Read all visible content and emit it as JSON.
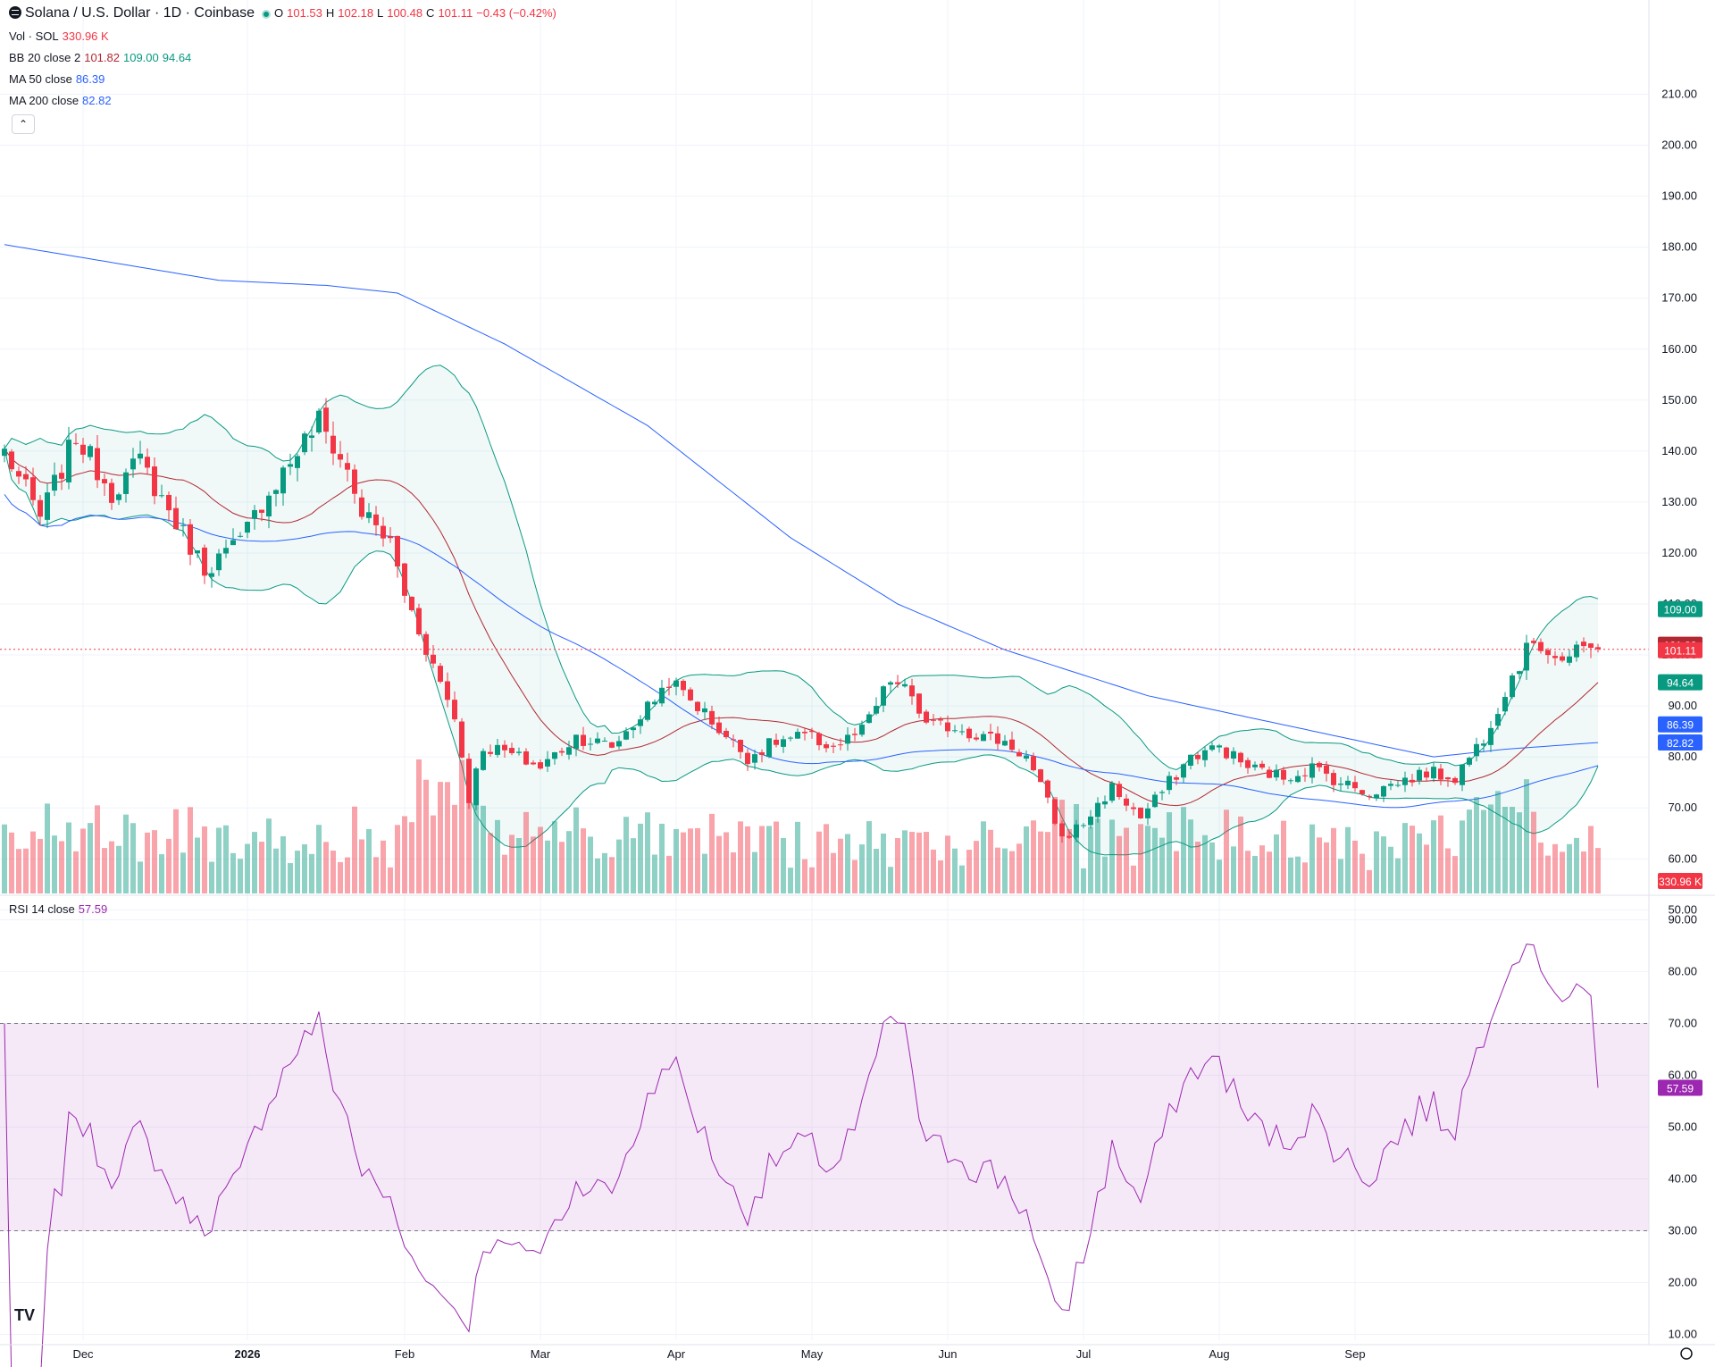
{
  "header": {
    "symbol_title": "Solana / U.S. Dollar · 1D · Coinbase",
    "open_label": "O",
    "open": "101.53",
    "high_label": "H",
    "high": "102.18",
    "low_label": "L",
    "low": "100.48",
    "close_label": "C",
    "close": "101.11",
    "change": "−0.43 (−0.42%)"
  },
  "indicators": {
    "vol_label": "Vol · SOL",
    "vol_value": "330.96 K",
    "bb_label": "BB 20 close 2",
    "bb_mid": "101.82",
    "bb_upper": "109.00",
    "bb_lower": "94.64",
    "ma50_label": "MA 50 close",
    "ma50_value": "86.39",
    "ma200_label": "MA 200 close",
    "ma200_value": "82.82",
    "rsi_label": "RSI 14 close",
    "rsi_value": "57.59"
  },
  "collapse_icon": "chevron-up",
  "logo": "TV",
  "colors": {
    "up": "#089981",
    "down": "#f23645",
    "bb": "#089981",
    "bb_basis": "#b22833",
    "ma": "#2962ff",
    "rsi": "#9c27b0"
  },
  "chart_data": [
    {
      "type": "candlestick",
      "title": "Solana / U.S. Dollar · 1D · Coinbase",
      "x_ticks": [
        "Dec",
        "2026",
        "Feb",
        "Mar",
        "Apr",
        "May",
        "Jun",
        "Jul",
        "Aug",
        "Sep"
      ],
      "y_ticks": [
        "210.00",
        "200.00",
        "190.00",
        "180.00",
        "170.00",
        "160.00",
        "150.00",
        "140.00",
        "130.00",
        "120.00",
        "110.00",
        "100.00",
        "90.00",
        "80.00",
        "70.00",
        "60.00",
        "50.00"
      ],
      "ylim": [
        48,
        214
      ],
      "price_path": [
        [
          0,
          140
        ],
        [
          5,
          127
        ],
        [
          10,
          143
        ],
        [
          15,
          132
        ],
        [
          19,
          138
        ],
        [
          24,
          126
        ],
        [
          28,
          117
        ],
        [
          33,
          122
        ],
        [
          36,
          130
        ],
        [
          40,
          138
        ],
        [
          44,
          146
        ],
        [
          48,
          136
        ],
        [
          50,
          128
        ],
        [
          54,
          122
        ],
        [
          56,
          112
        ],
        [
          60,
          98
        ],
        [
          63,
          88
        ],
        [
          65,
          72
        ],
        [
          67,
          82
        ],
        [
          70,
          81
        ],
        [
          75,
          78
        ],
        [
          80,
          84
        ],
        [
          85,
          82
        ],
        [
          89,
          88
        ],
        [
          93,
          95
        ],
        [
          97,
          90
        ],
        [
          101,
          84
        ],
        [
          104,
          80
        ],
        [
          108,
          83
        ],
        [
          112,
          84
        ],
        [
          116,
          82
        ],
        [
          120,
          85
        ],
        [
          124,
          95
        ],
        [
          127,
          92
        ],
        [
          129,
          86
        ],
        [
          133,
          86
        ],
        [
          137,
          84
        ],
        [
          140,
          83
        ],
        [
          143,
          80
        ],
        [
          146,
          71
        ],
        [
          148,
          64
        ],
        [
          151,
          67
        ],
        [
          155,
          74
        ],
        [
          159,
          68
        ],
        [
          163,
          75
        ],
        [
          166,
          80
        ],
        [
          170,
          82
        ],
        [
          174,
          78
        ],
        [
          179,
          76
        ],
        [
          183,
          78
        ],
        [
          187,
          75
        ],
        [
          191,
          73
        ],
        [
          195,
          75
        ],
        [
          199,
          77
        ],
        [
          203,
          76
        ],
        [
          207,
          84
        ],
        [
          211,
          96
        ],
        [
          214,
          103
        ],
        [
          218,
          99
        ],
        [
          221,
          101
        ],
        [
          223,
          101.11
        ]
      ],
      "last_price": 101.11,
      "bollinger": {
        "period": 20,
        "mult": 2,
        "basis": 101.82,
        "upper": 109.0,
        "lower": 94.64
      },
      "ma50": {
        "last": 86.39
      },
      "ma200": {
        "last": 82.82,
        "path": [
          [
            0,
            180.5
          ],
          [
            30,
            173.5
          ],
          [
            45,
            172.5
          ],
          [
            55,
            171
          ],
          [
            70,
            161
          ],
          [
            90,
            145
          ],
          [
            110,
            123
          ],
          [
            125,
            110
          ],
          [
            140,
            101
          ],
          [
            160,
            92
          ],
          [
            180,
            86
          ],
          [
            200,
            80
          ],
          [
            210,
            81.5
          ],
          [
            223,
            82.82
          ]
        ]
      },
      "volume_last": "330.96 K"
    },
    {
      "type": "line",
      "title": "RSI 14 close",
      "series": [
        {
          "name": "RSI 14 close",
          "last": 57.59
        }
      ],
      "y_ticks": [
        "90.00",
        "80.00",
        "70.00",
        "60.00",
        "50.00",
        "40.00",
        "30.00",
        "20.00",
        "10.00"
      ],
      "ylim": [
        8,
        93
      ],
      "band": [
        30,
        70
      ]
    }
  ]
}
